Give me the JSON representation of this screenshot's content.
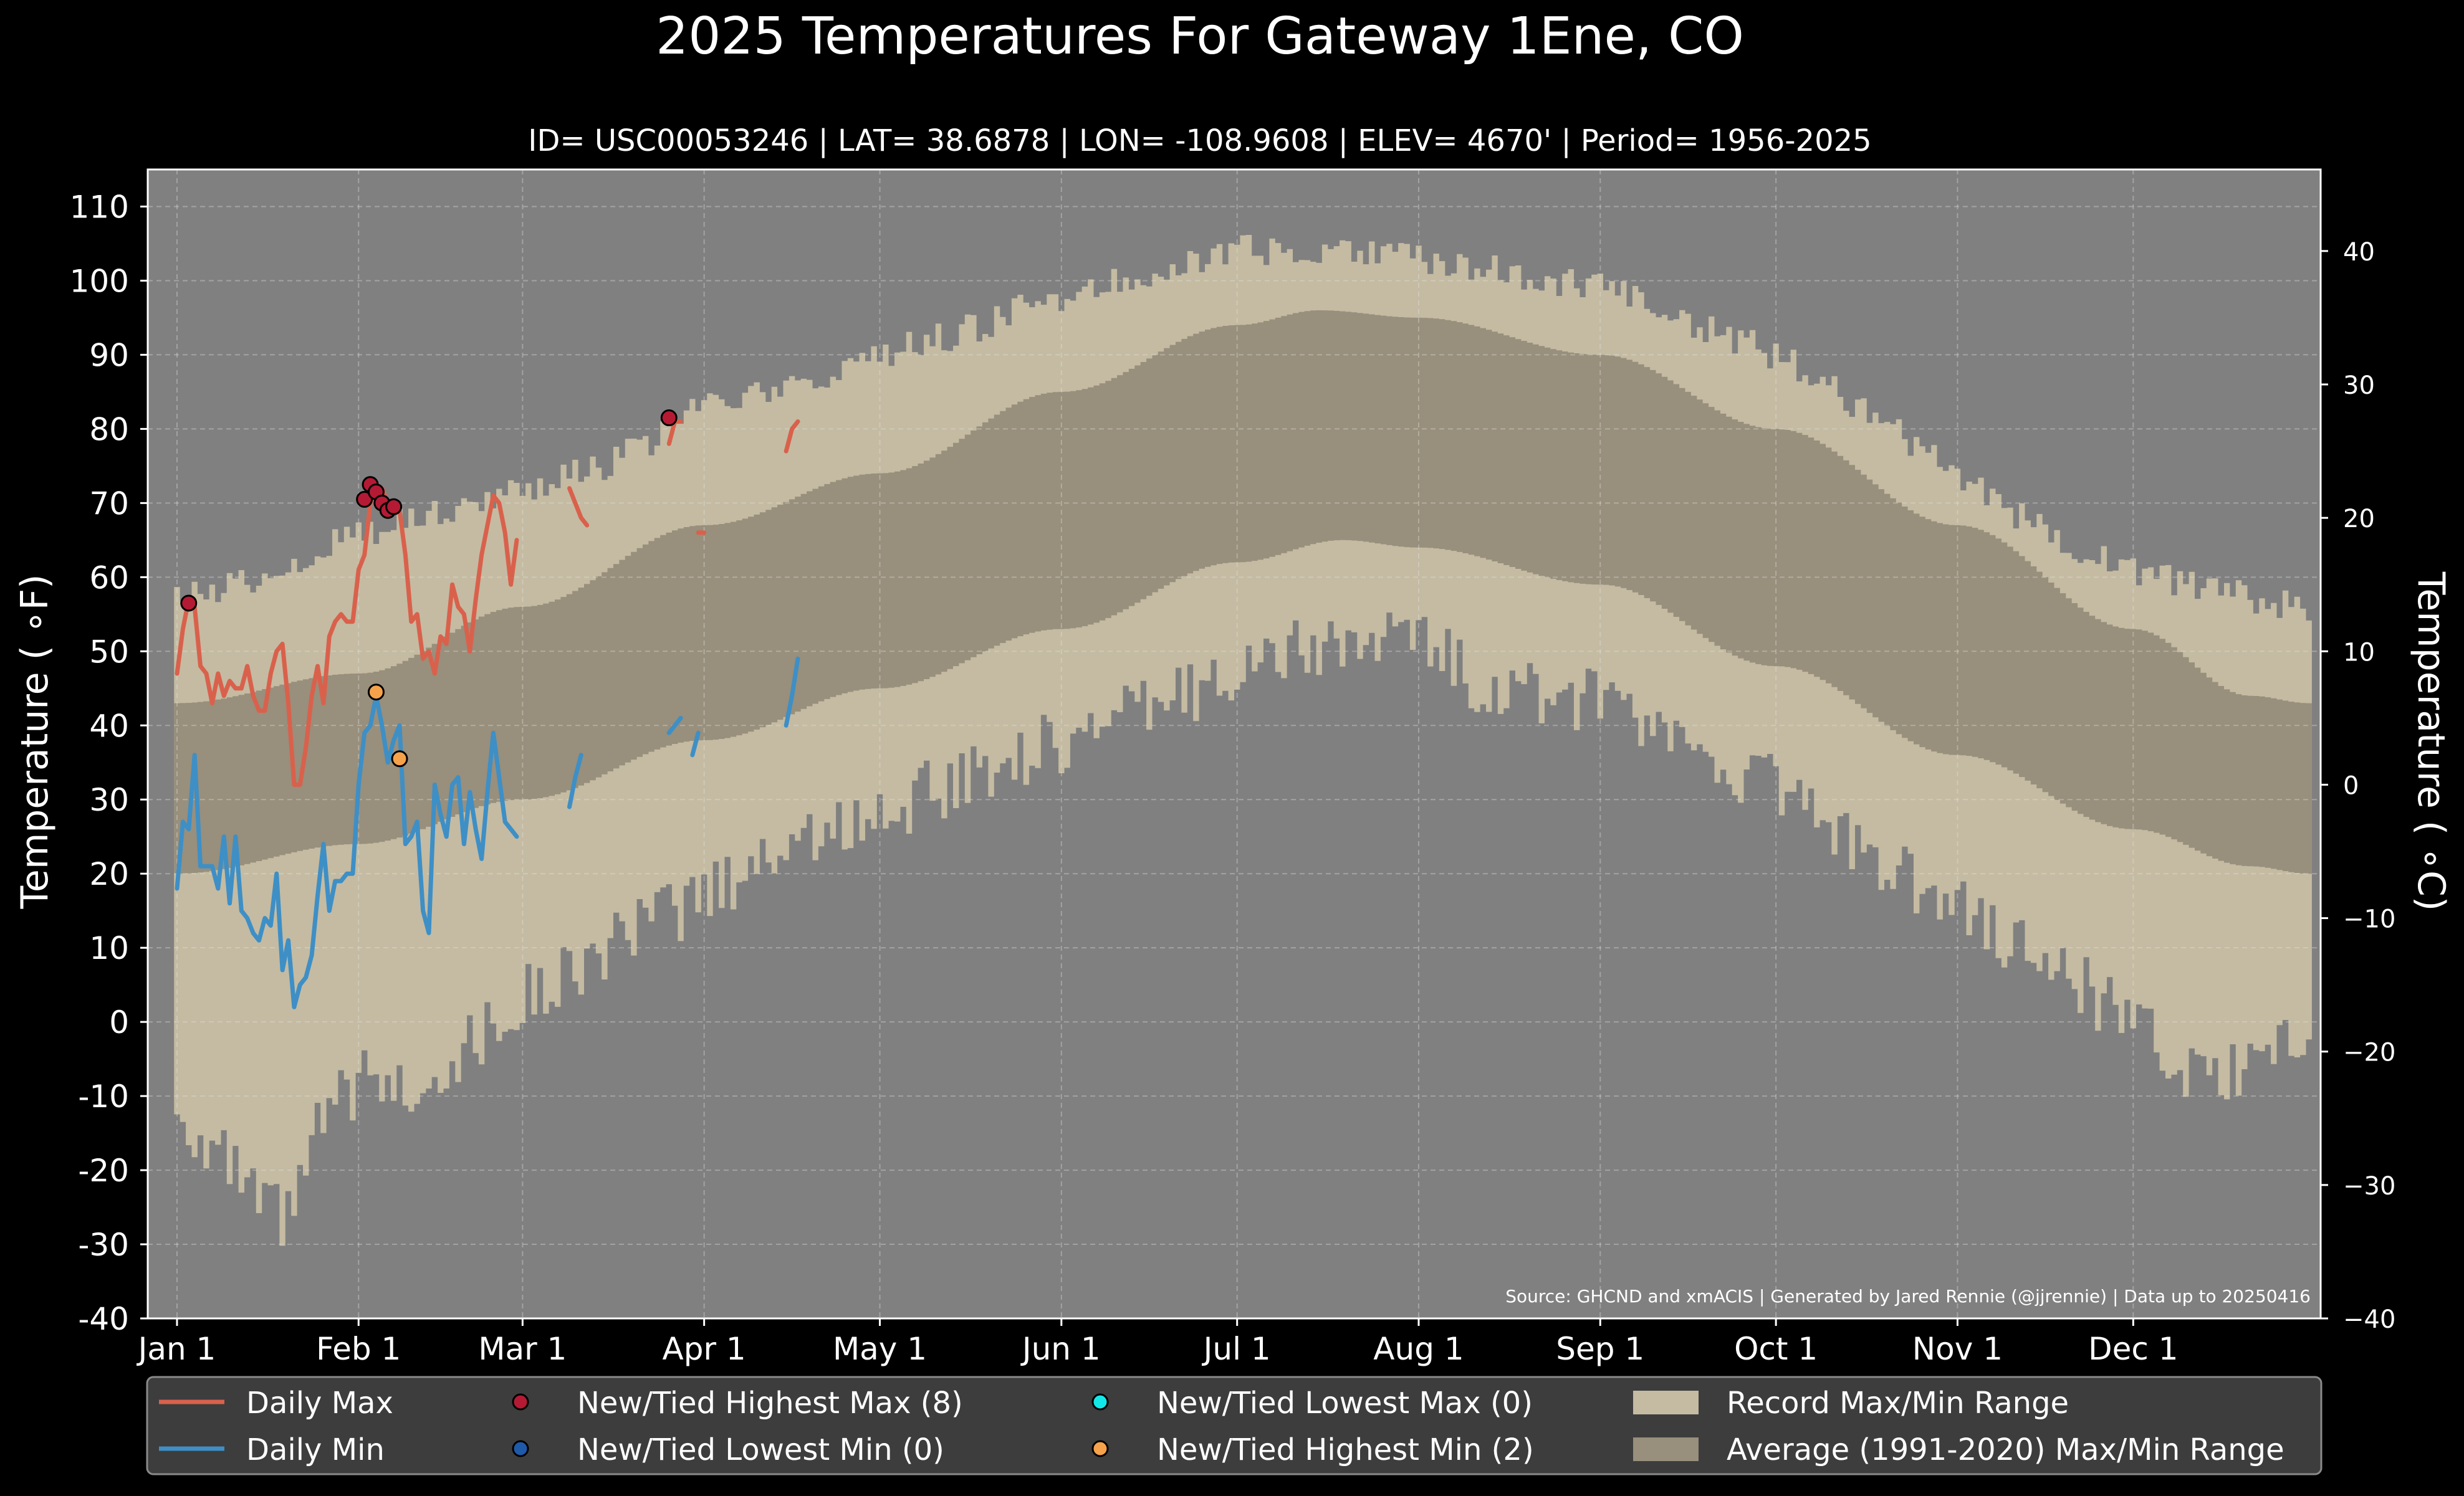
{
  "chart_data": {
    "type": "area",
    "title": "2025 Temperatures For Gateway 1Ene, CO",
    "subtitle": "ID= USC00053246 | LAT= 38.6878 | LON= -108.9608 | ELEV= 4670' | Period= 1956-2025",
    "ylabel_left": "Temperature ( ∘F)",
    "ylabel_right": "Temperature ( ∘C)",
    "source": "Source: GHCND and xmACIS | Generated by Jared Rennie (@jjrennie) | Data up to 20250416",
    "ylim_f": [
      -40,
      115
    ],
    "xlim_doy": [
      -4,
      367
    ],
    "grid": true,
    "legend_position": "bottom",
    "x_ticks": [
      {
        "label": "Jan 1",
        "doy": 1
      },
      {
        "label": "Feb 1",
        "doy": 32
      },
      {
        "label": "Mar 1",
        "doy": 60
      },
      {
        "label": "Apr 1",
        "doy": 91
      },
      {
        "label": "May 1",
        "doy": 121
      },
      {
        "label": "Jun 1",
        "doy": 152
      },
      {
        "label": "Jul 1",
        "doy": 182
      },
      {
        "label": "Aug 1",
        "doy": 213
      },
      {
        "label": "Sep 1",
        "doy": 244
      },
      {
        "label": "Oct 1",
        "doy": 274
      },
      {
        "label": "Nov 1",
        "doy": 305
      },
      {
        "label": "Dec 1",
        "doy": 335
      }
    ],
    "y_ticks_f": [
      {
        "label": "110",
        "v": 110
      },
      {
        "label": "100",
        "v": 100
      },
      {
        "label": "90",
        "v": 90
      },
      {
        "label": "80",
        "v": 80
      },
      {
        "label": "70",
        "v": 70
      },
      {
        "label": "60",
        "v": 60
      },
      {
        "label": "50",
        "v": 50
      },
      {
        "label": "40",
        "v": 40
      },
      {
        "label": "30",
        "v": 30
      },
      {
        "label": "20",
        "v": 20
      },
      {
        "label": "10",
        "v": 10
      },
      {
        "label": "0",
        "v": 0
      },
      {
        "label": "-10",
        "v": -10
      },
      {
        "label": "-20",
        "v": -20
      },
      {
        "label": "-30",
        "v": -30
      },
      {
        "label": "-40",
        "v": -40
      }
    ],
    "y_ticks_c": [
      {
        "label": "40",
        "v": 40
      },
      {
        "label": "30",
        "v": 30
      },
      {
        "label": "20",
        "v": 20
      },
      {
        "label": "10",
        "v": 10
      },
      {
        "label": "0",
        "v": 0
      },
      {
        "label": "−10",
        "v": -10
      },
      {
        "label": "−20",
        "v": -20
      },
      {
        "label": "−30",
        "v": -30
      },
      {
        "label": "−40",
        "v": -40
      }
    ],
    "record_max_anchors": [
      [
        1,
        57
      ],
      [
        15,
        60
      ],
      [
        32,
        66
      ],
      [
        50,
        70
      ],
      [
        60,
        72
      ],
      [
        75,
        75
      ],
      [
        91,
        83
      ],
      [
        105,
        85
      ],
      [
        121,
        90
      ],
      [
        135,
        93
      ],
      [
        152,
        98
      ],
      [
        170,
        102
      ],
      [
        182,
        104
      ],
      [
        200,
        104
      ],
      [
        213,
        103
      ],
      [
        230,
        101
      ],
      [
        244,
        99
      ],
      [
        260,
        94
      ],
      [
        274,
        90
      ],
      [
        290,
        82
      ],
      [
        305,
        74
      ],
      [
        320,
        66
      ],
      [
        335,
        61
      ],
      [
        350,
        58
      ],
      [
        365,
        56
      ]
    ],
    "record_min_anchors": [
      [
        1,
        -12
      ],
      [
        8,
        -18
      ],
      [
        15,
        -25
      ],
      [
        20,
        -27
      ],
      [
        25,
        -15
      ],
      [
        32,
        -8
      ],
      [
        40,
        -9
      ],
      [
        50,
        -4
      ],
      [
        60,
        3
      ],
      [
        75,
        10
      ],
      [
        91,
        17
      ],
      [
        105,
        24
      ],
      [
        121,
        28
      ],
      [
        135,
        33
      ],
      [
        152,
        38
      ],
      [
        170,
        43
      ],
      [
        182,
        48
      ],
      [
        200,
        51
      ],
      [
        213,
        52
      ],
      [
        225,
        45
      ],
      [
        244,
        43
      ],
      [
        255,
        38
      ],
      [
        274,
        32
      ],
      [
        290,
        22
      ],
      [
        305,
        16
      ],
      [
        320,
        8
      ],
      [
        335,
        0
      ],
      [
        345,
        -8
      ],
      [
        355,
        -6
      ],
      [
        365,
        -3
      ]
    ],
    "avg_max_anchors": [
      [
        1,
        43
      ],
      [
        32,
        47
      ],
      [
        60,
        56
      ],
      [
        91,
        67
      ],
      [
        121,
        74
      ],
      [
        152,
        85
      ],
      [
        182,
        94
      ],
      [
        196,
        96
      ],
      [
        213,
        95
      ],
      [
        244,
        90
      ],
      [
        274,
        80
      ],
      [
        305,
        67
      ],
      [
        335,
        53
      ],
      [
        355,
        44
      ],
      [
        365,
        43
      ]
    ],
    "avg_min_anchors": [
      [
        1,
        20
      ],
      [
        32,
        24
      ],
      [
        60,
        30
      ],
      [
        91,
        38
      ],
      [
        121,
        45
      ],
      [
        152,
        53
      ],
      [
        182,
        62
      ],
      [
        200,
        65
      ],
      [
        213,
        64
      ],
      [
        244,
        59
      ],
      [
        274,
        48
      ],
      [
        305,
        36
      ],
      [
        335,
        26
      ],
      [
        355,
        21
      ],
      [
        365,
        20
      ]
    ],
    "series": [
      {
        "name": "Daily Max",
        "color": "#d9614c",
        "segments": [
          [
            [
              1,
              47
            ],
            [
              2,
              53
            ],
            [
              3,
              57
            ],
            [
              4,
              56
            ],
            [
              5,
              48
            ],
            [
              6,
              47
            ],
            [
              7,
              43
            ],
            [
              8,
              47
            ],
            [
              9,
              44
            ],
            [
              10,
              46
            ],
            [
              11,
              45
            ],
            [
              12,
              45
            ],
            [
              13,
              48
            ],
            [
              14,
              44
            ],
            [
              15,
              42
            ],
            [
              16,
              42
            ],
            [
              17,
              47
            ],
            [
              18,
              50
            ],
            [
              19,
              51
            ],
            [
              20,
              43
            ],
            [
              21,
              32
            ],
            [
              22,
              32
            ],
            [
              23,
              37
            ],
            [
              24,
              44
            ],
            [
              25,
              48
            ],
            [
              26,
              43
            ],
            [
              27,
              52
            ],
            [
              28,
              54
            ],
            [
              29,
              55
            ],
            [
              30,
              54
            ],
            [
              31,
              54
            ],
            [
              32,
              61
            ],
            [
              33,
              63
            ],
            [
              34,
              70
            ],
            [
              35,
              72
            ],
            [
              36,
              72
            ],
            [
              37,
              70
            ],
            [
              38,
              69
            ],
            [
              39,
              69
            ],
            [
              40,
              63
            ],
            [
              41,
              54
            ],
            [
              42,
              55
            ],
            [
              43,
              49
            ],
            [
              44,
              50
            ],
            [
              45,
              47
            ],
            [
              46,
              52
            ],
            [
              47,
              51
            ],
            [
              48,
              59
            ],
            [
              49,
              56
            ],
            [
              50,
              55
            ],
            [
              51,
              50
            ],
            [
              52,
              57
            ],
            [
              53,
              63
            ],
            [
              54,
              67
            ],
            [
              55,
              71
            ],
            [
              56,
              70
            ],
            [
              57,
              66
            ],
            [
              58,
              59
            ],
            [
              59,
              65
            ]
          ],
          [
            [
              68,
              72
            ],
            [
              69,
              70
            ],
            [
              70,
              68
            ],
            [
              71,
              67
            ]
          ],
          [
            [
              85,
              78
            ],
            [
              86,
              81
            ],
            [
              87,
              81
            ]
          ],
          [
            [
              90,
              66
            ],
            [
              91,
              66
            ]
          ],
          [
            [
              105,
              77
            ],
            [
              106,
              80
            ],
            [
              107,
              81
            ]
          ]
        ]
      },
      {
        "name": "Daily Min",
        "color": "#3e8fc6",
        "segments": [
          [
            [
              1,
              18
            ],
            [
              2,
              27
            ],
            [
              3,
              26
            ],
            [
              4,
              36
            ],
            [
              5,
              21
            ],
            [
              6,
              21
            ],
            [
              7,
              21
            ],
            [
              8,
              18
            ],
            [
              9,
              25
            ],
            [
              10,
              16
            ],
            [
              11,
              25
            ],
            [
              12,
              15
            ],
            [
              13,
              14
            ],
            [
              14,
              12
            ],
            [
              15,
              11
            ],
            [
              16,
              14
            ],
            [
              17,
              13
            ],
            [
              18,
              20
            ],
            [
              19,
              7
            ],
            [
              20,
              11
            ],
            [
              21,
              2
            ],
            [
              22,
              5
            ],
            [
              23,
              6
            ],
            [
              24,
              9
            ],
            [
              25,
              17
            ],
            [
              26,
              24
            ],
            [
              27,
              15
            ],
            [
              28,
              19
            ],
            [
              29,
              19
            ],
            [
              30,
              20
            ],
            [
              31,
              20
            ],
            [
              32,
              32
            ],
            [
              33,
              39
            ],
            [
              34,
              40
            ],
            [
              35,
              44
            ],
            [
              36,
              40
            ],
            [
              37,
              35
            ],
            [
              38,
              38
            ],
            [
              39,
              40
            ],
            [
              40,
              24
            ],
            [
              41,
              25
            ],
            [
              42,
              27
            ],
            [
              43,
              15
            ],
            [
              44,
              12
            ],
            [
              45,
              32
            ],
            [
              46,
              28
            ],
            [
              47,
              25
            ],
            [
              48,
              32
            ],
            [
              49,
              33
            ],
            [
              50,
              24
            ],
            [
              51,
              31
            ],
            [
              52,
              26
            ],
            [
              53,
              22
            ],
            [
              54,
              31
            ],
            [
              55,
              39
            ],
            [
              56,
              33
            ],
            [
              57,
              27
            ],
            [
              58,
              26
            ],
            [
              59,
              25
            ]
          ],
          [
            [
              68,
              29
            ],
            [
              69,
              33
            ],
            [
              70,
              36
            ]
          ],
          [
            [
              85,
              39
            ],
            [
              86,
              40
            ],
            [
              87,
              41
            ]
          ],
          [
            [
              89,
              36
            ],
            [
              90,
              39
            ]
          ],
          [
            [
              105,
              40
            ],
            [
              106,
              44
            ],
            [
              107,
              49
            ]
          ]
        ]
      }
    ],
    "markers": {
      "highest_max": [
        [
          3,
          56.5
        ],
        [
          33,
          70.5
        ],
        [
          34,
          72.5
        ],
        [
          35,
          71.5
        ],
        [
          36,
          70
        ],
        [
          37,
          69
        ],
        [
          38,
          69.5
        ],
        [
          85,
          81.5
        ]
      ],
      "highest_min": [
        [
          35,
          44.5
        ],
        [
          39,
          35.5
        ]
      ],
      "lowest_max": [],
      "lowest_min": []
    },
    "legend": [
      {
        "key": "daily_max",
        "label": "Daily Max",
        "kind": "line",
        "color": "#d9614c"
      },
      {
        "key": "daily_min",
        "label": "Daily Min",
        "kind": "line",
        "color": "#3e8fc6"
      },
      {
        "key": "highest_max",
        "label": "New/Tied Highest Max (8)",
        "kind": "dot",
        "color": "#b51a35"
      },
      {
        "key": "lowest_min",
        "label": "New/Tied Lowest Min (0)",
        "kind": "dot",
        "color": "#1f5aa8"
      },
      {
        "key": "lowest_max",
        "label": "New/Tied Lowest Max (0)",
        "kind": "dot",
        "color": "#13e8e8"
      },
      {
        "key": "highest_min",
        "label": "New/Tied Highest Min (2)",
        "kind": "dot",
        "color": "#f6a24b"
      },
      {
        "key": "record_range",
        "label": "Record Max/Min Range",
        "kind": "patch",
        "color": "#c4bba2"
      },
      {
        "key": "avg_range",
        "label": "Average (1991-2020) Max/Min Range",
        "kind": "patch",
        "color": "#988f7c"
      }
    ],
    "colors": {
      "background": "#000000",
      "plot_background": "#808080",
      "record_range": "#c4bba2",
      "avg_range": "#988f7c",
      "legend_background": "#3d3d3d"
    }
  }
}
